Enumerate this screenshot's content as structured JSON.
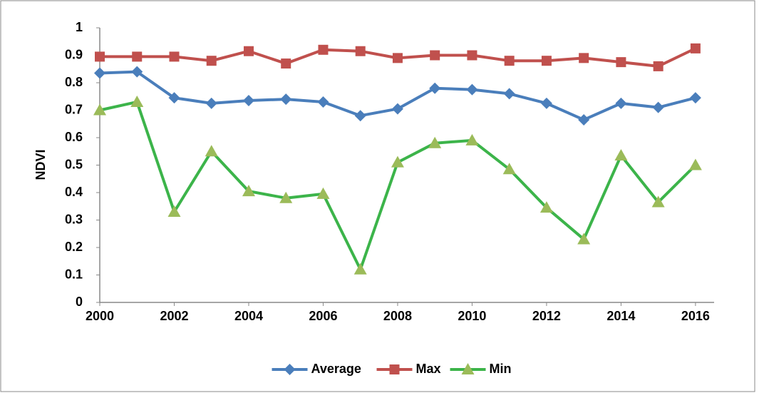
{
  "chart_data": {
    "type": "line",
    "y_label": "NDVI",
    "x": [
      2000,
      2001,
      2002,
      2003,
      2004,
      2005,
      2006,
      2007,
      2008,
      2009,
      2010,
      2011,
      2012,
      2013,
      2014,
      2015,
      2016
    ],
    "series": [
      {
        "name": "Average",
        "color": "#4a7ebb",
        "marker": "diamond",
        "values": [
          0.835,
          0.84,
          0.745,
          0.725,
          0.735,
          0.74,
          0.73,
          0.68,
          0.705,
          0.78,
          0.775,
          0.76,
          0.725,
          0.665,
          0.725,
          0.71,
          0.745
        ]
      },
      {
        "name": "Max",
        "color": "#c0504d",
        "marker": "square",
        "values": [
          0.895,
          0.895,
          0.895,
          0.88,
          0.915,
          0.87,
          0.92,
          0.915,
          0.89,
          0.9,
          0.9,
          0.88,
          0.88,
          0.89,
          0.875,
          0.86,
          0.925
        ]
      },
      {
        "name": "Min",
        "color": "#3cb44a",
        "marker_color": "#9bbb59",
        "marker": "triangle",
        "values": [
          0.7,
          0.73,
          0.33,
          0.55,
          0.405,
          0.38,
          0.395,
          0.12,
          0.51,
          0.58,
          0.59,
          0.485,
          0.345,
          0.23,
          0.535,
          0.365,
          0.5
        ]
      }
    ],
    "xlim": [
      2000,
      2016.5
    ],
    "xticks": [
      2000,
      2002,
      2004,
      2006,
      2008,
      2010,
      2012,
      2014,
      2016
    ],
    "ylim": [
      0,
      1
    ],
    "yticks": [
      0,
      0.1,
      0.2,
      0.3,
      0.4,
      0.5,
      0.6,
      0.7,
      0.8,
      0.9,
      1
    ],
    "grid": false,
    "legend": "bottom"
  }
}
